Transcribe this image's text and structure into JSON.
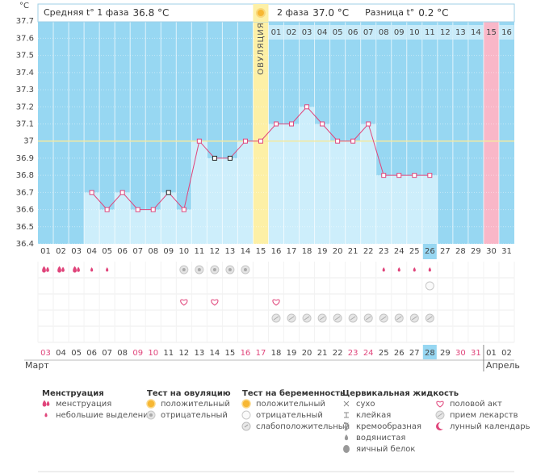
{
  "chart_data": {
    "type": "line",
    "y_unit": "°C",
    "phase1_label": "Средняя t° 1 фаза",
    "phase1_value": "36.8 °C",
    "phase2_label": "2 фаза",
    "phase2_value": "37.0 °C",
    "diff_label": "Разница t°",
    "diff_value": "0.2 °C",
    "ovulation_label": "ОВУЛЯЦИЯ",
    "categories": [
      "01",
      "02",
      "03",
      "04",
      "05",
      "06",
      "07",
      "08",
      "09",
      "10",
      "11",
      "12",
      "13",
      "14",
      "15",
      "16",
      "17",
      "18",
      "19",
      "20",
      "21",
      "22",
      "23",
      "24",
      "25",
      "26",
      "27",
      "28",
      "29",
      "30",
      "31"
    ],
    "phase2_days": [
      "01",
      "02",
      "03",
      "04",
      "05",
      "06",
      "07",
      "08",
      "09",
      "10",
      "11",
      "12",
      "13",
      "14",
      "15",
      "16"
    ],
    "dates": [
      "03",
      "04",
      "05",
      "06",
      "07",
      "08",
      "09",
      "10",
      "11",
      "12",
      "13",
      "14",
      "15",
      "16",
      "17",
      "18",
      "19",
      "20",
      "21",
      "22",
      "23",
      "24",
      "25",
      "26",
      "27",
      "28",
      "29",
      "30",
      "31",
      "01",
      "02"
    ],
    "date_colors": [
      "#e0457b",
      "#444",
      "#444",
      "#444",
      "#444",
      "#444",
      "#e0457b",
      "#e0457b",
      "#444",
      "#444",
      "#444",
      "#444",
      "#444",
      "#e0457b",
      "#e0457b",
      "#444",
      "#444",
      "#444",
      "#444",
      "#444",
      "#e0457b",
      "#e0457b",
      "#444",
      "#444",
      "#444",
      "#444",
      "#444",
      "#e0457b",
      "#e0457b",
      "#444",
      "#444"
    ],
    "months": [
      "Март",
      "Апрель"
    ],
    "series": [
      {
        "color": "#e0457b",
        "values": [
          null,
          null,
          null,
          36.7,
          36.6,
          36.7,
          36.6,
          36.6,
          36.7,
          36.6,
          37.0,
          36.9,
          36.9,
          37.0,
          37.0,
          37.1,
          37.1,
          37.2,
          37.1,
          37.0,
          37.0,
          37.1,
          36.8,
          36.8,
          36.8,
          36.8,
          null,
          null,
          null,
          null,
          null
        ],
        "marker_colors": [
          "#e0457b",
          "#e0457b",
          "#e0457b",
          "#e0457b",
          "#e0457b",
          "#e0457b",
          "#e0457b",
          "#e0457b",
          "#222",
          "#e0457b",
          "#e0457b",
          "#222",
          "#222",
          "#e0457b",
          "#e0457b",
          "#e0457b",
          "#e0457b",
          "#e0457b",
          "#e0457b",
          "#e0457b",
          "#e0457b",
          "#e0457b",
          "#e0457b",
          "#e0457b",
          "#e0457b",
          "#e0457b",
          "#e0457b",
          "#e0457b",
          "#e0457b",
          "#e0457b",
          "#e0457b"
        ]
      }
    ],
    "bar_color": "#cdeefb",
    "background_color": "#97d7f2",
    "column_colors": [
      null,
      null,
      null,
      null,
      null,
      null,
      null,
      null,
      null,
      null,
      null,
      null,
      null,
      null,
      "#fdf0a6",
      null,
      null,
      null,
      null,
      null,
      null,
      null,
      null,
      null,
      null,
      null,
      null,
      null,
      null,
      "#f9b7c8",
      null
    ],
    "reference_line": 37,
    "current_day_index": 25,
    "current_date_index": 25,
    "ylim": [
      36.4,
      37.8
    ],
    "yticks": [
      36.4,
      36.5,
      36.6,
      36.7,
      36.8,
      36.9,
      37,
      37.1,
      37.2,
      37.3,
      37.4,
      37.5,
      37.6,
      37.7
    ],
    "symbol_rows": [
      [
        "drop-big",
        "drop-big",
        "drop-big",
        "drop-small",
        "drop-small",
        null,
        null,
        null,
        null,
        "ov-neg",
        "ov-neg",
        "ov-neg",
        "ov-neg",
        "ov-neg",
        null,
        null,
        null,
        null,
        null,
        null,
        null,
        null,
        "drop-small",
        "drop-small",
        "drop-small",
        "drop-small",
        null,
        null,
        null,
        null,
        null
      ],
      [
        null,
        null,
        null,
        null,
        null,
        null,
        null,
        null,
        null,
        null,
        null,
        null,
        null,
        null,
        null,
        null,
        null,
        null,
        null,
        null,
        null,
        null,
        null,
        null,
        null,
        "preg-neg",
        null,
        null,
        null,
        null,
        null
      ],
      [
        null,
        null,
        null,
        null,
        null,
        null,
        null,
        null,
        null,
        "sex",
        null,
        "sex",
        null,
        null,
        null,
        "sex",
        null,
        null,
        null,
        null,
        null,
        null,
        null,
        null,
        null,
        null,
        null,
        null,
        null,
        null,
        null
      ],
      [
        null,
        null,
        null,
        null,
        null,
        null,
        null,
        null,
        null,
        null,
        null,
        null,
        null,
        null,
        null,
        "pill",
        "pill",
        "pill",
        "pill",
        "pill",
        "pill",
        "pill",
        "pill",
        "pill",
        "pill",
        "pill",
        null,
        null,
        null,
        null,
        null
      ],
      [
        null,
        null,
        null,
        null,
        null,
        null,
        null,
        null,
        null,
        null,
        null,
        null,
        null,
        null,
        null,
        null,
        null,
        null,
        null,
        null,
        null,
        null,
        null,
        null,
        null,
        null,
        null,
        null,
        null,
        null,
        null
      ]
    ],
    "legend": [
      {
        "title": "Менструация",
        "items": [
          {
            "icon": "drop-big",
            "label": "менструация"
          },
          {
            "icon": "drop-small",
            "label": "небольшие выделения"
          }
        ]
      },
      {
        "title": "Тест на овуляцию",
        "items": [
          {
            "icon": "ov-pos",
            "label": "положительный"
          },
          {
            "icon": "ov-neg",
            "label": "отрицательный"
          }
        ]
      },
      {
        "title": "Тест на беременность",
        "items": [
          {
            "icon": "ov-pos",
            "label": "положительный"
          },
          {
            "icon": "preg-neg",
            "label": "отрицательный"
          },
          {
            "icon": "preg-weak",
            "label": "слабоположительный"
          }
        ]
      },
      {
        "title": "Цервикальная жидкость",
        "items": [
          {
            "icon": "dry",
            "label": "сухо"
          },
          {
            "icon": "sticky",
            "label": "клейкая"
          },
          {
            "icon": "creamy",
            "label": "кремообразная"
          },
          {
            "icon": "watery",
            "label": "водянистая"
          },
          {
            "icon": "egg",
            "label": "яичный белок"
          }
        ]
      },
      {
        "items": [
          {
            "icon": "sex",
            "label": "половой акт"
          },
          {
            "icon": "pill",
            "label": "прием лекарств"
          },
          {
            "icon": "moon",
            "label": "лунный календарь"
          }
        ]
      }
    ]
  }
}
